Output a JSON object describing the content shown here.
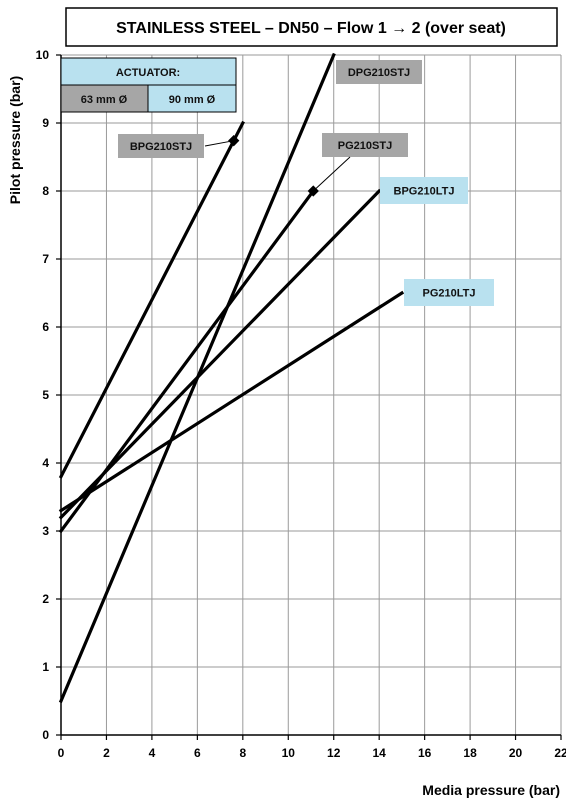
{
  "chart_data": {
    "type": "line",
    "title": "STAINLESS STEEL – DN50 – Flow 1 → 2 (over seat)",
    "xlabel": "Media pressure (bar)",
    "ylabel": "Pilot pressure (bar)",
    "xlim": [
      0,
      22
    ],
    "ylim": [
      0,
      10
    ],
    "xticks": [
      0,
      2,
      4,
      6,
      8,
      10,
      12,
      14,
      16,
      18,
      20,
      22
    ],
    "yticks": [
      0,
      1,
      2,
      3,
      4,
      5,
      6,
      7,
      8,
      9,
      10
    ],
    "grid": true,
    "legend": {
      "title": "ACTUATOR:",
      "entries": [
        {
          "label": "63 mm Ø",
          "color": "#a6a6a6"
        },
        {
          "label": "90 mm Ø",
          "color": "#b9e1ef"
        }
      ]
    },
    "series": [
      {
        "name": "BPG210STJ",
        "x": [
          0,
          8
        ],
        "y": [
          3.8,
          9.0
        ],
        "color": "#a6a6a6",
        "marker_x": 7.6
      },
      {
        "name": "DPG210STJ",
        "x": [
          0,
          12
        ],
        "y": [
          0.5,
          10.0
        ],
        "color": "#a6a6a6"
      },
      {
        "name": "PG210STJ",
        "x": [
          0,
          11.1
        ],
        "y": [
          3.0,
          8.0
        ],
        "color": "#a6a6a6",
        "marker_x": 11.1
      },
      {
        "name": "BPG210LTJ",
        "x": [
          0,
          14
        ],
        "y": [
          3.2,
          8.0
        ],
        "color": "#b9e1ef"
      },
      {
        "name": "PG210LTJ",
        "x": [
          0,
          15
        ],
        "y": [
          3.3,
          6.5
        ],
        "color": "#b9e1ef"
      }
    ]
  }
}
